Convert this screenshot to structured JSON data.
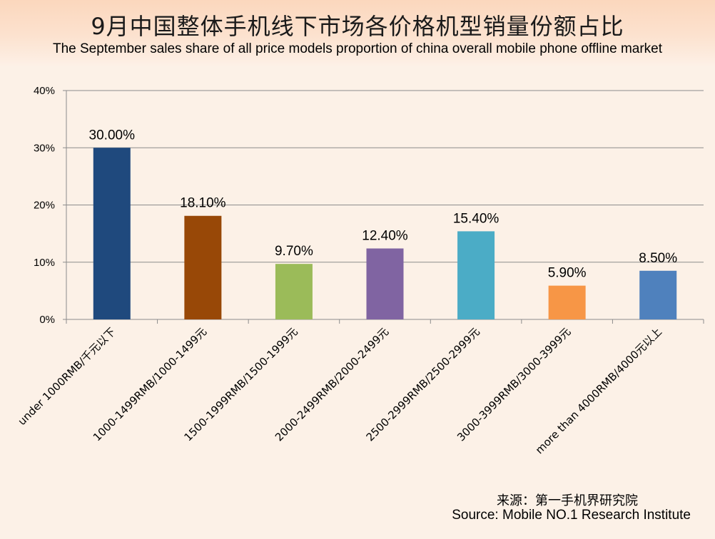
{
  "title": {
    "cn": "9月中国整体手机线下市场各价格机型销量份额占比",
    "en": "The September sales share of all price models proportion of china overall mobile phone offline market"
  },
  "source": {
    "cn": "来源：第一手机界研究院",
    "en": "Source: Mobile NO.1 Research Institute"
  },
  "chart_data": {
    "type": "bar",
    "categories": [
      "under 1000RMB/千元以下",
      "1000-1499RMB/1000-1499元",
      "1500-1999RMB/1500-1999元",
      "2000-2499RMB/2000-2499元",
      "2500-2999RMB/2500-2999元",
      "3000-3999RMB/3000-3999元",
      "more than 4000RMB/4000元以上"
    ],
    "values": [
      30.0,
      18.1,
      9.7,
      12.4,
      15.4,
      5.9,
      8.5
    ],
    "data_labels": [
      "30.00%",
      "18.10%",
      "9.70%",
      "12.40%",
      "15.40%",
      "5.90%",
      "8.50%"
    ],
    "colors": [
      "#1f497d",
      "#984807",
      "#9bbb59",
      "#8064a2",
      "#4bacc6",
      "#f79646",
      "#4f81bd"
    ],
    "ylim": [
      0,
      40
    ],
    "yticks": [
      "0%",
      "10%",
      "20%",
      "30%",
      "40%"
    ],
    "grid": true,
    "legend": "none"
  }
}
